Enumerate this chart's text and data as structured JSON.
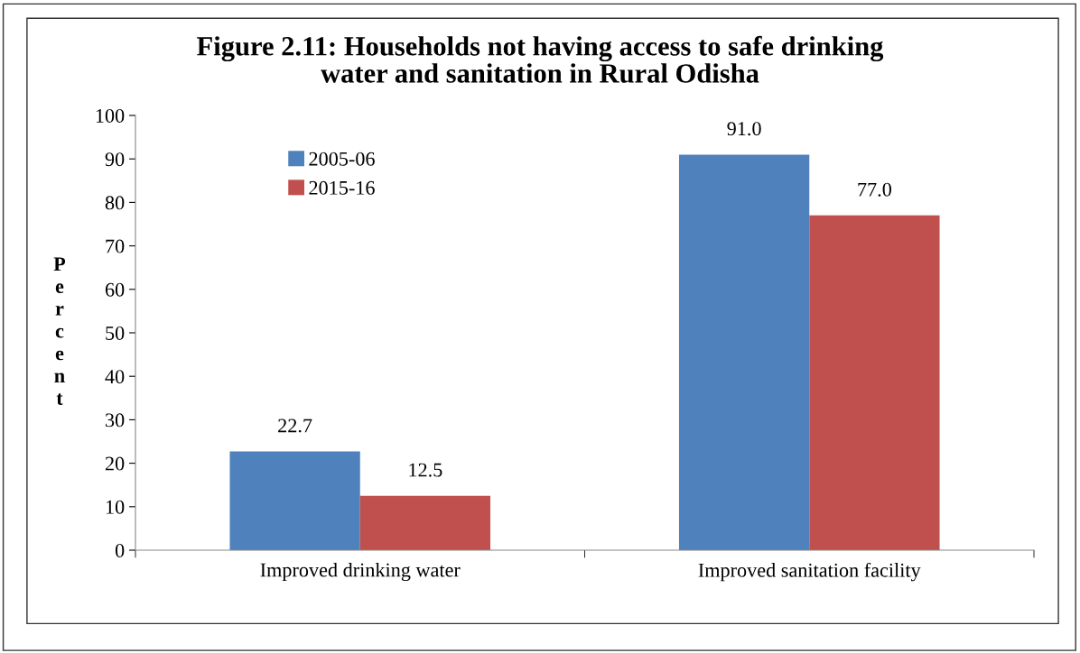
{
  "chart_data": {
    "type": "bar",
    "title": "Figure 2.11: Households not having access to safe drinking\nwater and sanitation in Rural Odisha",
    "ylabel": "Percent",
    "categories": [
      "Improved drinking water",
      "Improved sanitation facility"
    ],
    "series": [
      {
        "name": "2005-06",
        "color": "#4f81bd",
        "values": [
          22.7,
          91.0
        ],
        "value_labels": [
          "22.7",
          "91.0"
        ]
      },
      {
        "name": "2015-16",
        "color": "#c0504d",
        "values": [
          12.5,
          77.0
        ],
        "value_labels": [
          "12.5",
          "77.0"
        ]
      }
    ],
    "ylim": [
      0,
      100
    ],
    "yticks": [
      0,
      10,
      20,
      30,
      40,
      50,
      60,
      70,
      80,
      90,
      100
    ],
    "grid": false,
    "legend": "top left"
  }
}
